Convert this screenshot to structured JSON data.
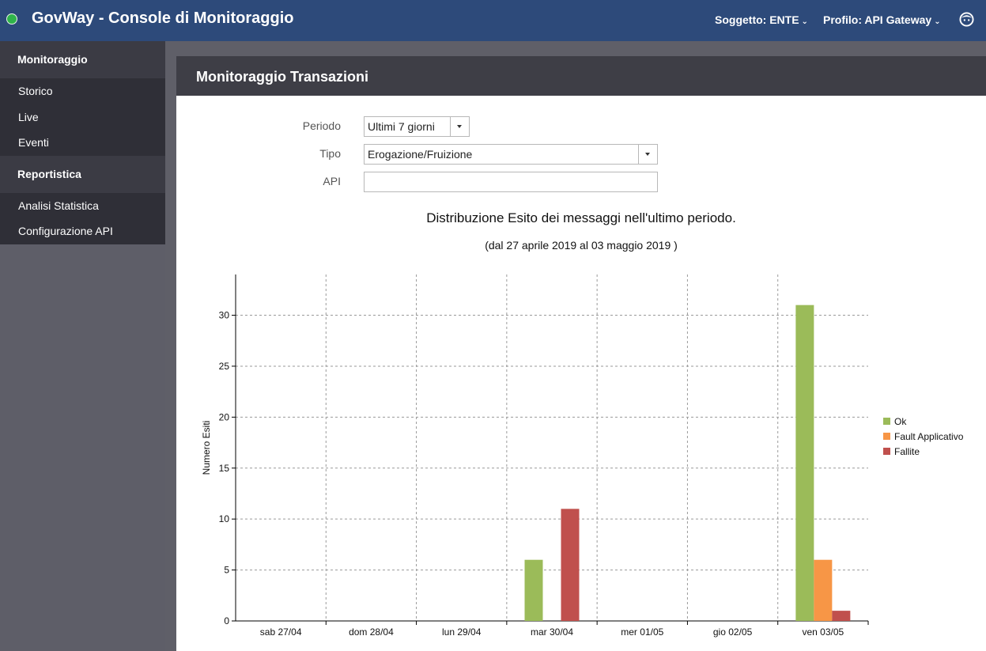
{
  "header": {
    "title": "GovWay - Console di Monitoraggio",
    "soggetto_label": "Soggetto: ENTE",
    "profilo_label": "Profilo: API Gateway"
  },
  "sidebar": {
    "sections": [
      {
        "title": "Monitoraggio",
        "items": [
          "Storico",
          "Live",
          "Eventi"
        ]
      },
      {
        "title": "Reportistica",
        "items": [
          "Analisi Statistica",
          "Configurazione API"
        ]
      }
    ]
  },
  "main": {
    "title": "Monitoraggio Transazioni",
    "form": {
      "periodo_label": "Periodo",
      "periodo_value": "Ultimi 7 giorni",
      "tipo_label": "Tipo",
      "tipo_value": "Erogazione/Fruizione",
      "api_label": "API",
      "api_value": ""
    }
  },
  "colors": {
    "ok": "#9bbb59",
    "fault": "#f79646",
    "fallite": "#c0504d",
    "topbar": "#2d4a7a"
  },
  "chart_data": {
    "type": "bar",
    "title": "Distribuzione Esito dei messaggi nell'ultimo periodo.",
    "subtitle": "(dal 27 aprile 2019 al 03 maggio 2019 )",
    "ylabel": "Numero Esiti",
    "xlabel": "",
    "categories": [
      "sab 27/04",
      "dom 28/04",
      "lun 29/04",
      "mar 30/04",
      "mer 01/05",
      "gio 02/05",
      "ven 03/05"
    ],
    "series": [
      {
        "name": "Ok",
        "values": [
          0,
          0,
          0,
          6,
          0,
          0,
          31
        ]
      },
      {
        "name": "Fault Applicativo",
        "values": [
          0,
          0,
          0,
          0,
          0,
          0,
          6
        ]
      },
      {
        "name": "Fallite",
        "values": [
          0,
          0,
          0,
          11,
          0,
          0,
          1
        ]
      }
    ],
    "yticks": [
      0,
      5,
      10,
      15,
      20,
      25,
      30
    ],
    "ylim": [
      0,
      34
    ],
    "grid": true,
    "legend": "right"
  }
}
